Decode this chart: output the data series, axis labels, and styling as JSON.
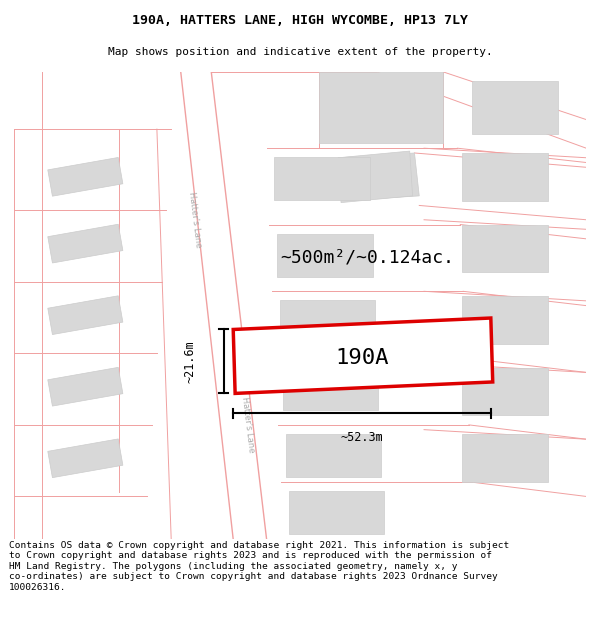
{
  "title": "190A, HATTERS LANE, HIGH WYCOMBE, HP13 7LY",
  "subtitle": "Map shows position and indicative extent of the property.",
  "footer": "Contains OS data © Crown copyright and database right 2021. This information is subject\nto Crown copyright and database rights 2023 and is reproduced with the permission of\nHM Land Registry. The polygons (including the associated geometry, namely x, y\nco-ordinates) are subject to Crown copyright and database rights 2023 Ordnance Survey\n100026316.",
  "area_label": "~500m²/~0.124ac.",
  "width_label": "~52.3m",
  "height_label": "~21.6m",
  "plot_label": "190A",
  "map_bg": "#ffffff",
  "road_line_color": "#f0a0a0",
  "building_fill": "#d8d8d8",
  "building_edge": "#cccccc",
  "plot_fill": "#ffffff",
  "plot_edge": "#dd0000",
  "road_label_color": "#aaaaaa",
  "title_fontsize": 9.5,
  "subtitle_fontsize": 8,
  "footer_fontsize": 6.8,
  "area_fontsize": 13,
  "plot_label_fontsize": 16,
  "dim_fontsize": 8.5
}
